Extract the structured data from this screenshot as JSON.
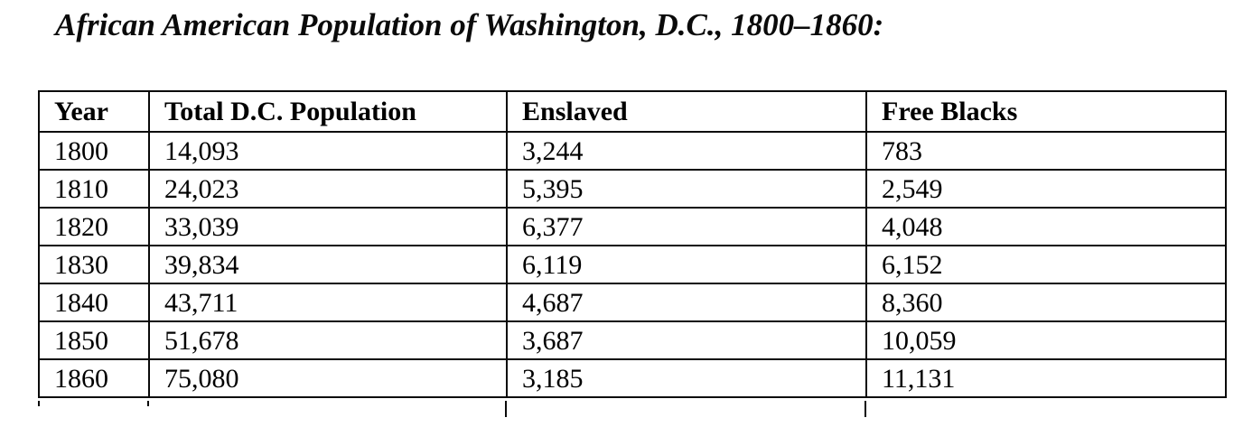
{
  "title": "African American Population of Washington, D.C., 1800–1860:",
  "table": {
    "headers": [
      "Year",
      "Total D.C. Population",
      "Enslaved",
      "Free Blacks"
    ],
    "rows": [
      [
        "1800",
        "14,093",
        "3,244",
        "783"
      ],
      [
        "1810",
        "24,023",
        "5,395",
        "2,549"
      ],
      [
        "1820",
        "33,039",
        "6,377",
        "4,048"
      ],
      [
        "1830",
        "39,834",
        "6,119",
        "6,152"
      ],
      [
        "1840",
        "43,711",
        "4,687",
        "8,360"
      ],
      [
        "1850",
        "51,678",
        "3,687",
        "10,059"
      ],
      [
        "1860",
        "75,080",
        "3,185",
        "11,131"
      ]
    ]
  },
  "chart_data": {
    "type": "table",
    "title": "African American Population of Washington, D.C., 1800–1860:",
    "categories": [
      1800,
      1810,
      1820,
      1830,
      1840,
      1850,
      1860
    ],
    "series": [
      {
        "name": "Total D.C. Population",
        "values": [
          14093,
          24023,
          33039,
          39834,
          43711,
          51678,
          75080
        ]
      },
      {
        "name": "Enslaved",
        "values": [
          3244,
          5395,
          6377,
          6119,
          4687,
          3687,
          3185
        ]
      },
      {
        "name": "Free Blacks",
        "values": [
          783,
          2549,
          4048,
          6152,
          8360,
          10059,
          11131
        ]
      }
    ]
  },
  "colors": {
    "background": "#ffffff",
    "text": "#0a0a0a",
    "border": "#0a0a0a"
  }
}
